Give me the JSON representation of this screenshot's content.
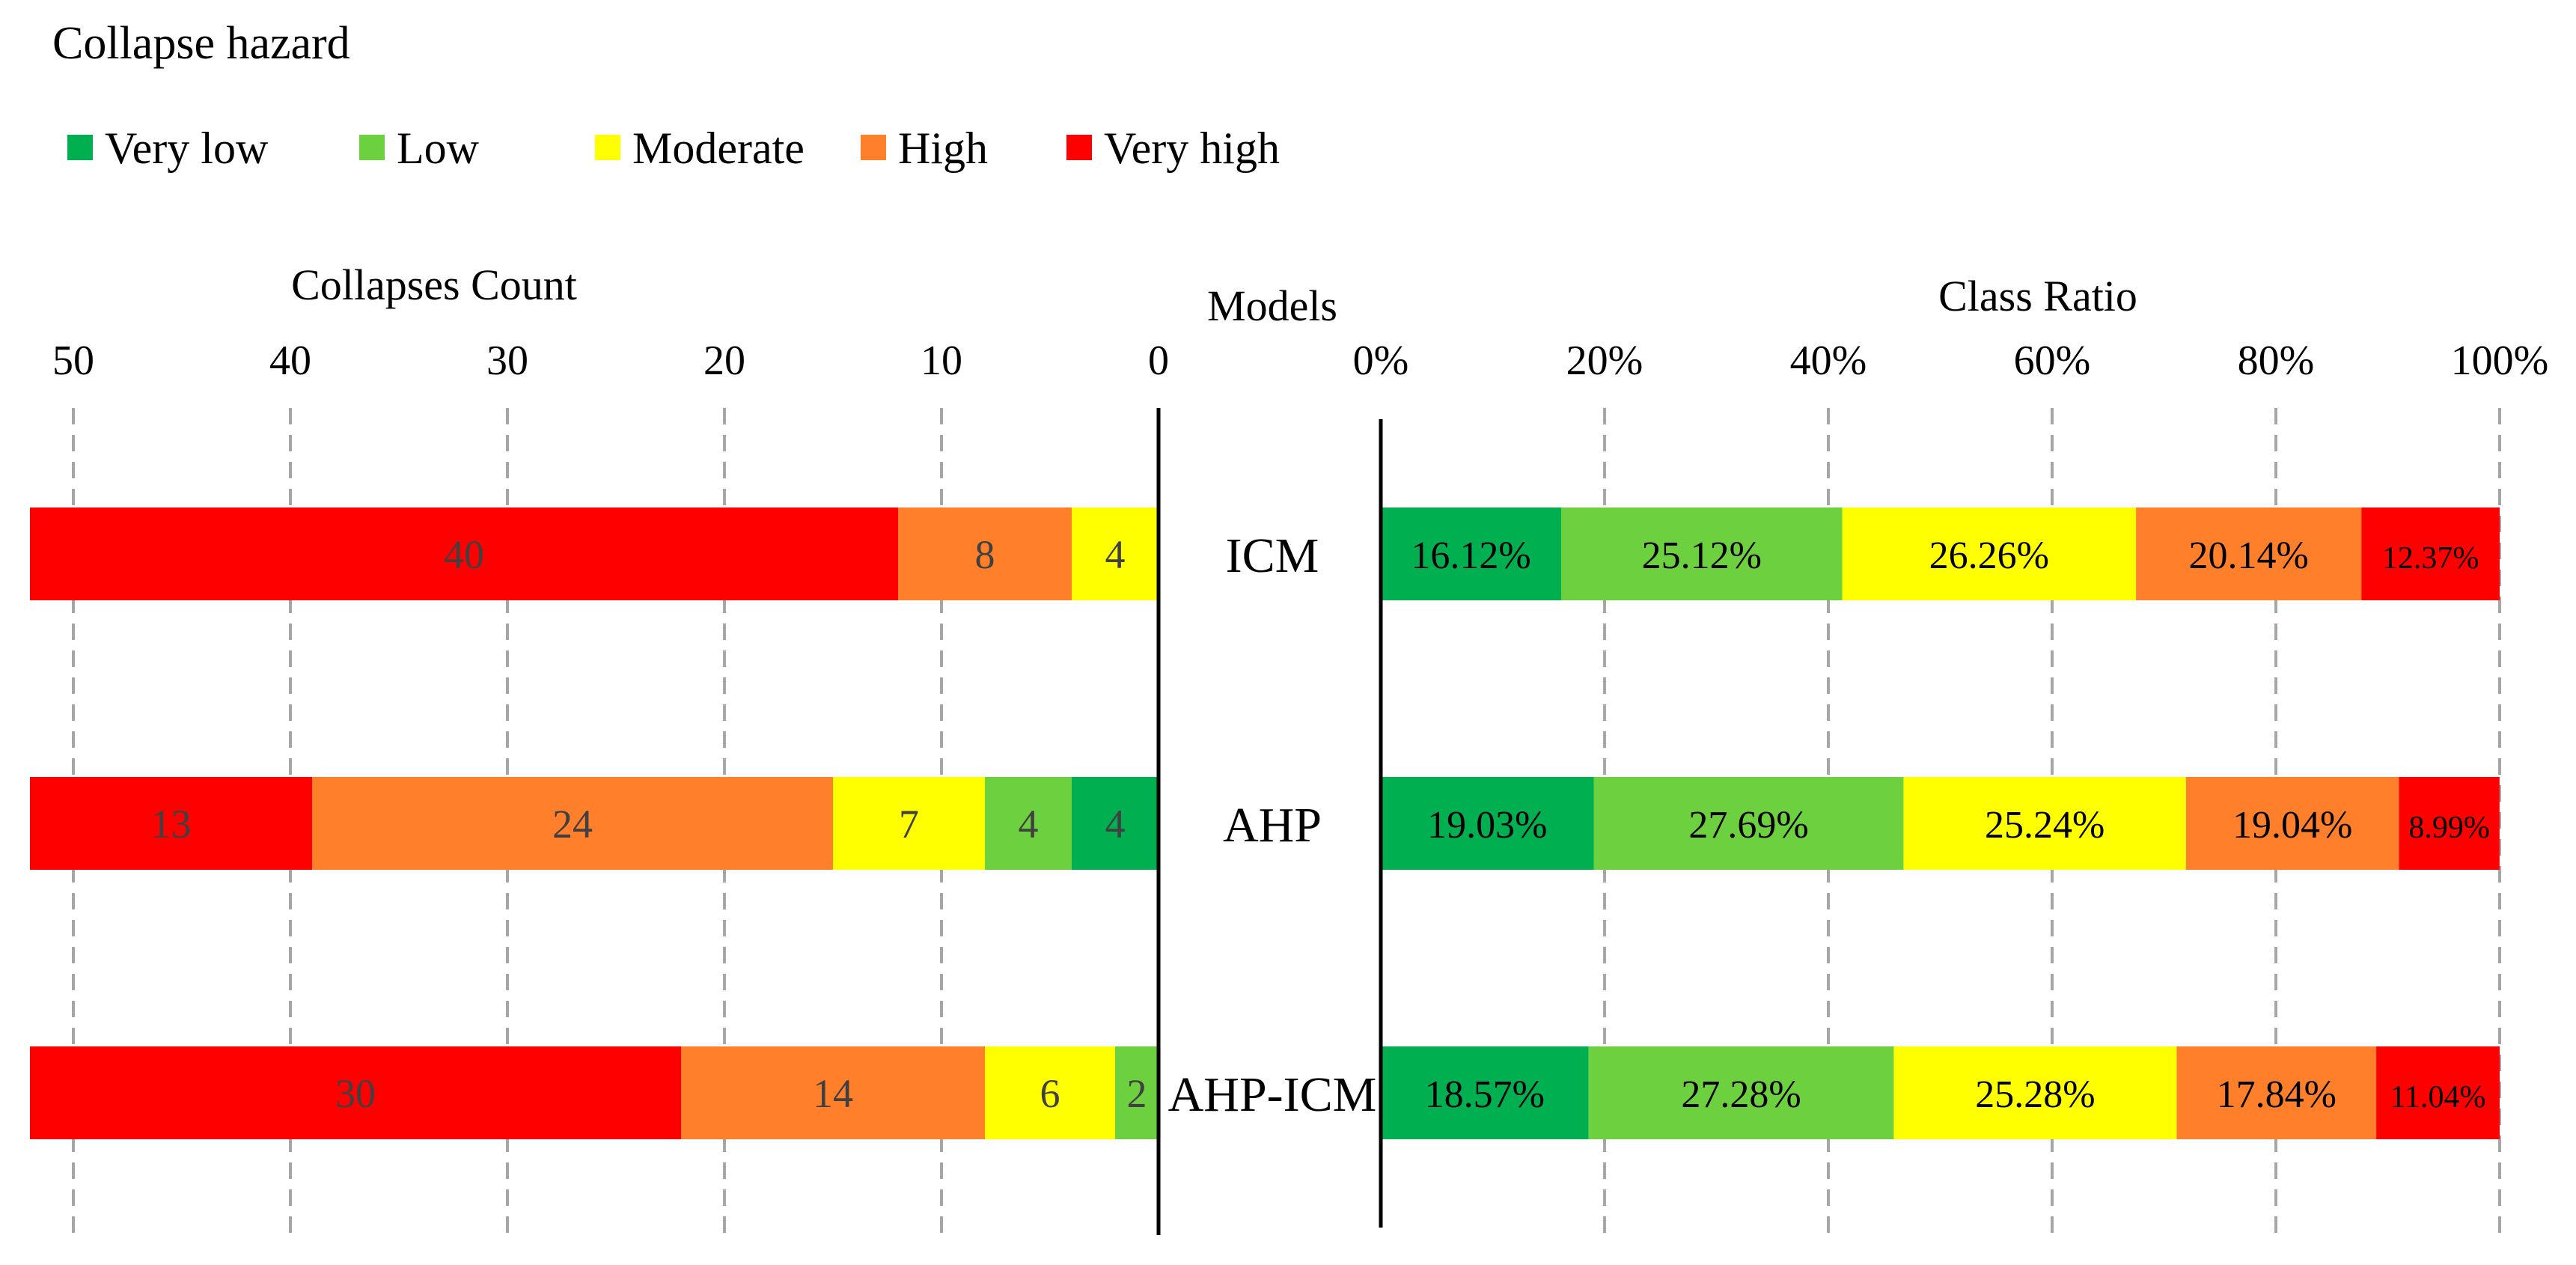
{
  "legend": {
    "title": "Collapse hazard",
    "items": [
      {
        "label": "Very low",
        "color": "#00B050"
      },
      {
        "label": "Low",
        "color": "#6DD13F"
      },
      {
        "label": "Moderate",
        "color": "#FFFF00"
      },
      {
        "label": "High",
        "color": "#FF7F2A"
      },
      {
        "label": "Very high",
        "color": "#FF0000"
      }
    ]
  },
  "models_label": "Models",
  "chart_data": [
    {
      "type": "bar",
      "orientation": "horizontal-stacked",
      "direction": "right-to-left",
      "title": "Collapses Count",
      "categories": [
        "ICM",
        "AHP",
        "AHP-ICM"
      ],
      "xlim": [
        0,
        52
      ],
      "ticks": [
        50,
        40,
        30,
        20,
        10,
        0
      ],
      "grid": true,
      "series": [
        {
          "name": "Very low",
          "color": "#00B050",
          "values": [
            0,
            4,
            0
          ]
        },
        {
          "name": "Low",
          "color": "#6DD13F",
          "values": [
            0,
            4,
            2
          ]
        },
        {
          "name": "Moderate",
          "color": "#FFFF00",
          "values": [
            4,
            7,
            6
          ]
        },
        {
          "name": "High",
          "color": "#FF7F2A",
          "values": [
            8,
            24,
            14
          ]
        },
        {
          "name": "Very high",
          "color": "#FF0000",
          "values": [
            40,
            13,
            30
          ]
        }
      ]
    },
    {
      "type": "bar",
      "orientation": "horizontal-stacked",
      "direction": "left-to-right",
      "title": "Class Ratio",
      "categories": [
        "ICM",
        "AHP",
        "AHP-ICM"
      ],
      "xlim": [
        0,
        100
      ],
      "ticks": [
        "0%",
        "20%",
        "40%",
        "60%",
        "80%",
        "100%"
      ],
      "grid": true,
      "series": [
        {
          "name": "Very low",
          "color": "#00B050",
          "values": [
            16.12,
            19.03,
            18.57
          ],
          "labels": [
            "16.12%",
            "19.03%",
            "18.57%"
          ]
        },
        {
          "name": "Low",
          "color": "#6DD13F",
          "values": [
            25.12,
            27.69,
            27.28
          ],
          "labels": [
            "25.12%",
            "27.69%",
            "27.28%"
          ]
        },
        {
          "name": "Moderate",
          "color": "#FFFF00",
          "values": [
            26.26,
            25.24,
            25.28
          ],
          "labels": [
            "26.26%",
            "25.24%",
            "25.28%"
          ]
        },
        {
          "name": "High",
          "color": "#FF7F2A",
          "values": [
            20.14,
            19.04,
            17.84
          ],
          "labels": [
            "20.14%",
            "19.04%",
            "17.84%"
          ]
        },
        {
          "name": "Very high",
          "color": "#FF0000",
          "values": [
            12.37,
            8.99,
            11.04
          ],
          "labels": [
            "12.37%",
            "8.99%",
            "11.04%"
          ]
        }
      ]
    }
  ]
}
